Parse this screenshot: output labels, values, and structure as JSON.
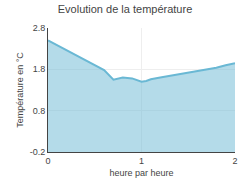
{
  "chart_data": {
    "type": "area",
    "title": "Evolution de la température",
    "xlabel": "heure par heure",
    "ylabel": "Température en °C",
    "x": [
      0,
      0.1,
      0.2,
      0.3,
      0.4,
      0.5,
      0.6,
      0.7,
      0.8,
      0.9,
      1.0,
      1.05,
      1.1,
      1.2,
      1.3,
      1.4,
      1.5,
      1.6,
      1.7,
      1.8,
      1.9,
      2.0
    ],
    "values": [
      2.5,
      2.38,
      2.26,
      2.14,
      2.02,
      1.9,
      1.78,
      1.55,
      1.6,
      1.58,
      1.5,
      1.52,
      1.56,
      1.6,
      1.64,
      1.68,
      1.72,
      1.76,
      1.8,
      1.84,
      1.9,
      1.95
    ],
    "color": "#6ab8d4",
    "xlim": [
      0,
      2
    ],
    "ylim": [
      -0.2,
      2.8
    ],
    "xticks": [
      0,
      1,
      2
    ],
    "yticks": [
      -0.2,
      0.8,
      1.8,
      2.8
    ],
    "grid": true
  }
}
